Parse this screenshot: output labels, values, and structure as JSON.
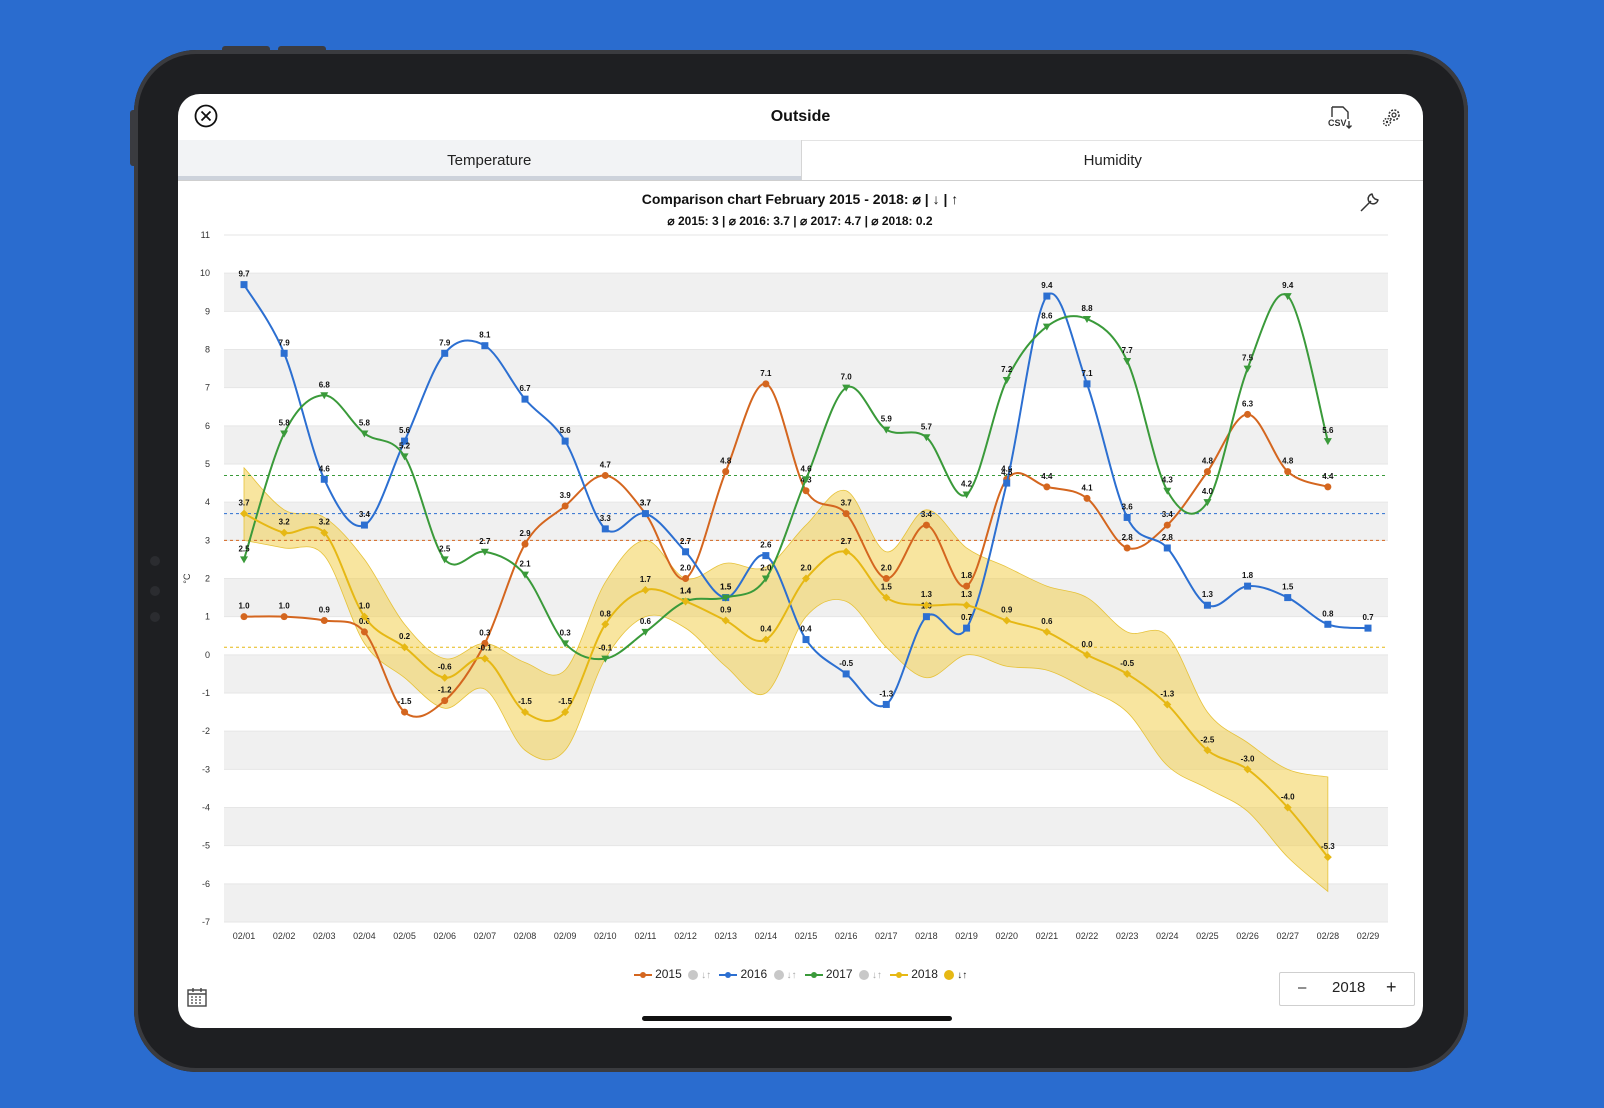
{
  "header": {
    "title": "Outside",
    "close_icon": "close-icon",
    "csv_icon": "csv-download-icon",
    "settings_icon": "gear-icon"
  },
  "tabs": [
    {
      "label": "Temperature",
      "active": true
    },
    {
      "label": "Humidity",
      "active": false
    }
  ],
  "footer": {
    "year_minus": "–",
    "year": "2018",
    "year_plus": "+"
  },
  "chart_data": {
    "type": "line",
    "title": "Comparison chart February 2015 - 2018: ⌀ | ↓ | ↑",
    "subtitle": "⌀ 2015: 3 | ⌀ 2016: 3.7 | ⌀ 2017: 4.7 | ⌀ 2018: 0.2",
    "ylabel": "°C",
    "ylim": [
      -7,
      11
    ],
    "yticks": [
      "11",
      "10",
      "9",
      "8",
      "7",
      "6",
      "5",
      "4",
      "3",
      "2",
      "1",
      "0",
      "-1",
      "-2",
      "-3",
      "-4",
      "-5",
      "-6",
      "-7"
    ],
    "categories": [
      "02/01",
      "02/02",
      "02/03",
      "02/04",
      "02/05",
      "02/06",
      "02/07",
      "02/08",
      "02/09",
      "02/10",
      "02/11",
      "02/12",
      "02/13",
      "02/14",
      "02/15",
      "02/16",
      "02/17",
      "02/18",
      "02/19",
      "02/20",
      "02/21",
      "02/22",
      "02/23",
      "02/24",
      "02/25",
      "02/26",
      "02/27",
      "02/28",
      "02/29"
    ],
    "series": [
      {
        "name": "2015",
        "color": "#d4661f",
        "marker": "circle",
        "avg": 3,
        "values": [
          1.0,
          1.0,
          0.9,
          0.6,
          -1.5,
          -1.2,
          0.3,
          2.9,
          3.9,
          4.7,
          3.7,
          2.0,
          4.8,
          7.1,
          4.3,
          3.7,
          2.0,
          3.4,
          1.8,
          4.6,
          4.4,
          4.1,
          2.8,
          3.4,
          4.8,
          6.3,
          4.8,
          4.4,
          null
        ]
      },
      {
        "name": "2016",
        "color": "#2c6fd1",
        "marker": "square",
        "avg": 3.7,
        "values": [
          9.7,
          7.9,
          4.6,
          3.4,
          5.6,
          7.9,
          8.1,
          6.7,
          5.6,
          3.3,
          3.7,
          2.7,
          1.5,
          2.6,
          0.4,
          -0.5,
          -1.3,
          1.0,
          0.7,
          4.5,
          9.4,
          7.1,
          3.6,
          2.8,
          1.3,
          1.8,
          1.5,
          0.8,
          0.7
        ]
      },
      {
        "name": "2017",
        "color": "#3a9a3a",
        "marker": "triangle-down",
        "avg": 4.7,
        "values": [
          2.5,
          5.8,
          6.8,
          5.8,
          5.2,
          2.5,
          2.7,
          2.1,
          0.3,
          -0.1,
          0.6,
          1.4,
          1.5,
          2.0,
          4.6,
          7.0,
          5.9,
          5.7,
          4.2,
          7.2,
          8.6,
          8.8,
          7.7,
          4.3,
          4.0,
          7.5,
          9.4,
          5.6,
          null
        ]
      },
      {
        "name": "2018",
        "color": "#e6b814",
        "marker": "diamond",
        "avg": 0.2,
        "values": [
          3.7,
          3.2,
          3.2,
          1.0,
          0.2,
          -0.6,
          -0.1,
          -1.5,
          -1.5,
          0.8,
          1.7,
          1.4,
          0.9,
          0.4,
          2.0,
          2.7,
          1.5,
          1.3,
          1.3,
          0.9,
          0.6,
          0.0,
          -0.5,
          -1.3,
          -2.5,
          -3.0,
          -4.0,
          -5.3,
          null
        ],
        "min": [
          3.0,
          2.8,
          2.6,
          0.3,
          -0.6,
          -1.4,
          -0.9,
          -2.5,
          -2.5,
          -0.1,
          1.0,
          0.7,
          -0.3,
          -1.0,
          1.0,
          1.4,
          0.2,
          -0.6,
          0.0,
          -0.3,
          -0.4,
          -0.9,
          -1.5,
          -2.9,
          -3.5,
          -4.1,
          -5.3,
          -6.2,
          null
        ],
        "max": [
          4.9,
          3.8,
          3.6,
          2.5,
          0.8,
          -0.1,
          0.3,
          -0.2,
          -0.4,
          1.9,
          3.0,
          2.0,
          2.4,
          2.3,
          3.4,
          4.3,
          2.7,
          3.8,
          2.8,
          2.3,
          1.8,
          1.5,
          0.6,
          0.5,
          -1.5,
          -2.3,
          -3.0,
          -3.2,
          null
        ]
      }
    ],
    "legend": [
      {
        "name": "2015",
        "extra": "↓↑"
      },
      {
        "name": "2016",
        "extra": "↓↑"
      },
      {
        "name": "2017",
        "extra": "↓↑"
      },
      {
        "name": "2018",
        "extra": "↓↑"
      }
    ]
  }
}
